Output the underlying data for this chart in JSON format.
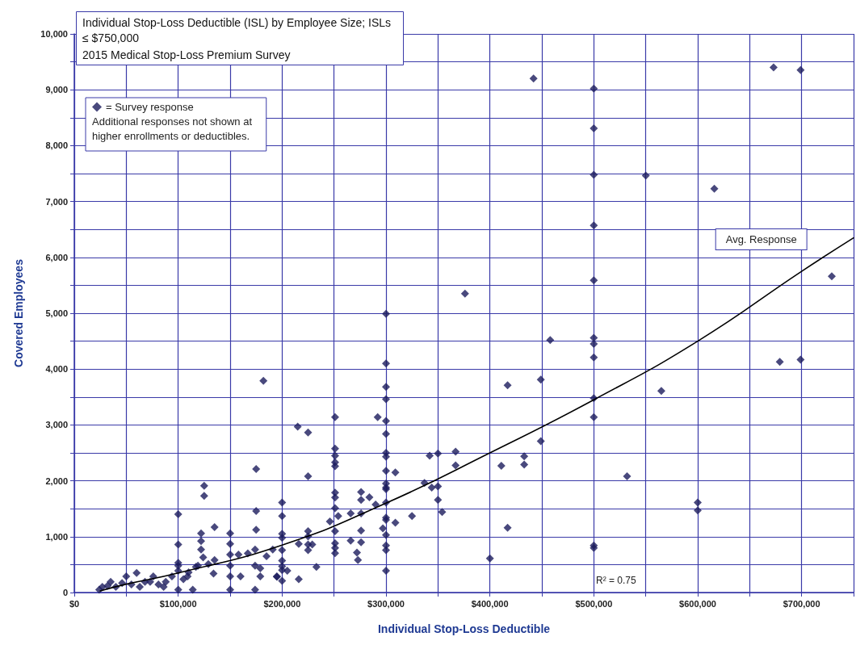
{
  "chart_data": {
    "type": "scatter",
    "title": "Individual Stop-Loss Deductible (ISL) by Employee Size; ISLs ≤ $750,000",
    "subtitle": "2015 Medical Stop-Loss Premium Survey",
    "xlabel": "Individual Stop-Loss Deductible",
    "ylabel": "Covered Employees",
    "annotations": [
      "Additional responses not shown at higher enrollments or deductibles.",
      "R² = 0.75"
    ],
    "xlim": [
      0,
      750000
    ],
    "xticks": [
      {
        "value": 0,
        "label": "$0"
      },
      {
        "value": 50000,
        "label": null
      },
      {
        "value": 100000,
        "label": "$100,000"
      },
      {
        "value": 150000,
        "label": null
      },
      {
        "value": 200000,
        "label": "$200,000"
      },
      {
        "value": 250000,
        "label": null
      },
      {
        "value": 300000,
        "label": "$300,000"
      },
      {
        "value": 350000,
        "label": null
      },
      {
        "value": 400000,
        "label": "$400,000"
      },
      {
        "value": 450000,
        "label": null
      },
      {
        "value": 500000,
        "label": "$500,000"
      },
      {
        "value": 550000,
        "label": null
      },
      {
        "value": 600000,
        "label": "$600,000"
      },
      {
        "value": 650000,
        "label": null
      },
      {
        "value": 700000,
        "label": "$700,000"
      },
      {
        "value": 750000,
        "label": null
      }
    ],
    "ylim": [
      0,
      10000
    ],
    "yticks": [
      0,
      {
        "value": 500,
        "label": null
      },
      {
        "value": 1000,
        "label": "1,000"
      },
      {
        "value": 1500,
        "label": null
      },
      {
        "value": 2000,
        "label": "2,000"
      },
      {
        "value": 2500,
        "label": null
      },
      {
        "value": 3000,
        "label": "3,000"
      },
      {
        "value": 3500,
        "label": null
      },
      {
        "value": 4000,
        "label": "4,000"
      },
      {
        "value": 4500,
        "label": null
      },
      {
        "value": 5000,
        "label": "5,000"
      },
      {
        "value": 5500,
        "label": null
      },
      {
        "value": 6000,
        "label": "6,000"
      },
      {
        "value": 6500,
        "label": null
      },
      {
        "value": 7000,
        "label": "7,000"
      },
      {
        "value": 7500,
        "label": null
      },
      {
        "value": 8000,
        "label": "8,000"
      },
      {
        "value": 8500,
        "label": null
      },
      {
        "value": 9000,
        "label": "9,000"
      },
      {
        "value": 9500,
        "label": null
      },
      {
        "value": 10000,
        "label": "10,000"
      }
    ],
    "grid": true,
    "legend": "top left",
    "series": [
      {
        "name": "= Survey response",
        "marker": "diamond",
        "color": "#1c1c5c",
        "x": [
          442000,
          500000,
          500000,
          500000,
          550000,
          616000,
          500000,
          500000,
          673000,
          699000,
          729000,
          458000,
          500000,
          500000,
          500000,
          417000,
          449000,
          500000,
          500000,
          565000,
          679000,
          699000,
          411000,
          433000,
          433000,
          449000,
          532000,
          600000,
          600000,
          417000,
          500000,
          500000,
          400000,
          376000,
          182000,
          300000,
          300000,
          300000,
          300000,
          300000,
          292000,
          300000,
          300000,
          300000,
          300000,
          309000,
          300000,
          300000,
          300000,
          300000,
          300000,
          300000,
          297000,
          300000,
          300000,
          300000,
          300000,
          309000,
          325000,
          251000,
          251000,
          251000,
          251000,
          251000,
          251000,
          251000,
          251000,
          254000,
          246000,
          251000,
          251000,
          251000,
          251000,
          266000,
          266000,
          276000,
          276000,
          284000,
          290000,
          276000,
          276000,
          276000,
          272000,
          273000,
          215000,
          225000,
          225000,
          225000,
          225000,
          225000,
          225000,
          229000,
          216000,
          233000,
          216000,
          200000,
          200000,
          200000,
          200000,
          200000,
          200000,
          200000,
          200000,
          205000,
          195000,
          200000,
          337000,
          342000,
          350000,
          367000,
          367000,
          344000,
          350000,
          350000,
          354000,
          175000,
          125000,
          125000,
          100000,
          175000,
          175000,
          135000,
          100000,
          100000,
          100000,
          100000,
          122000,
          122000,
          122000,
          124000,
          119000,
          109000,
          150000,
          150000,
          150000,
          150000,
          150000,
          150000,
          158000,
          167000,
          160000,
          174000,
          174000,
          174000,
          179000,
          185000,
          191000,
          195000,
          179000,
          129000,
          134000,
          114000,
          94000,
          86000,
          76000,
          60000,
          50000,
          35000,
          27000,
          24000,
          40000,
          55000,
          68000,
          81000,
          88000,
          105000,
          110000,
          117000,
          73000,
          46000,
          32000,
          63000,
          100000,
          135000
        ],
        "values": [
          9200,
          9020,
          8310,
          7480,
          7465,
          7230,
          6570,
          5590,
          9400,
          9355,
          5660,
          4520,
          4560,
          4450,
          4210,
          3710,
          3810,
          3480,
          3140,
          3610,
          4130,
          4170,
          2270,
          2440,
          2290,
          2710,
          2080,
          1610,
          1470,
          1160,
          840,
          800,
          610,
          5350,
          3790,
          4990,
          4100,
          3680,
          3460,
          3070,
          3140,
          2840,
          2500,
          2430,
          2180,
          2150,
          1950,
          1880,
          1850,
          1610,
          1340,
          1300,
          1150,
          1030,
          840,
          760,
          390,
          1250,
          1370,
          3140,
          2575,
          2450,
          2330,
          2260,
          1790,
          1700,
          1510,
          1370,
          1270,
          1100,
          880,
          800,
          705,
          1415,
          930,
          1800,
          1660,
          1705,
          1575,
          1415,
          1110,
          900,
          715,
          580,
          2970,
          2865,
          2080,
          1100,
          1005,
          860,
          760,
          860,
          870,
          460,
          240,
          1610,
          1370,
          1050,
          980,
          760,
          570,
          470,
          400,
          390,
          280,
          210,
          1960,
          2450,
          2490,
          2520,
          2275,
          1880,
          1900,
          1660,
          1440,
          2210,
          1910,
          1730,
          1400,
          1460,
          1125,
          1170,
          860,
          530,
          390,
          50,
          1060,
          920,
          770,
          630,
          480,
          290,
          1060,
          870,
          680,
          480,
          290,
          50,
          680,
          700,
          290,
          770,
          480,
          50,
          435,
          650,
          770,
          290,
          290,
          510,
          340,
          50,
          290,
          100,
          290,
          350,
          290,
          190,
          100,
          50,
          100,
          145,
          190,
          145,
          190,
          240,
          360,
          460,
          190,
          170,
          120,
          100,
          480,
          580
        ]
      },
      {
        "name": "Avg. Response",
        "type": "line",
        "marker": "none",
        "line_style": "solid",
        "color": "#000000",
        "x": [
          25000,
          50000,
          100000,
          200000,
          300000,
          400000,
          500000,
          600000,
          700000,
          750000
        ],
        "values": [
          30,
          150,
          350,
          850,
          1600,
          2500,
          3450,
          4500,
          5750,
          6350
        ]
      }
    ]
  }
}
